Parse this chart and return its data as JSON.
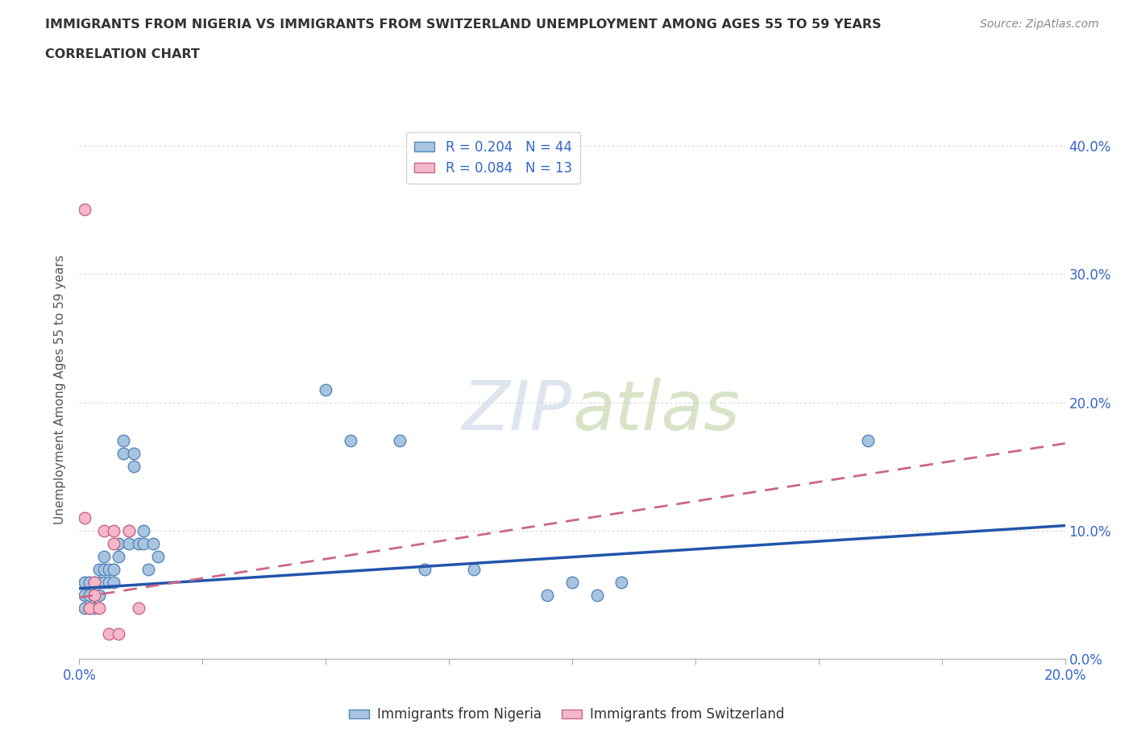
{
  "title_line1": "IMMIGRANTS FROM NIGERIA VS IMMIGRANTS FROM SWITZERLAND UNEMPLOYMENT AMONG AGES 55 TO 59 YEARS",
  "title_line2": "CORRELATION CHART",
  "source": "Source: ZipAtlas.com",
  "ylabel": "Unemployment Among Ages 55 to 59 years",
  "xlim": [
    0.0,
    0.2
  ],
  "ylim": [
    0.0,
    0.42
  ],
  "xticks": [
    0.0,
    0.025,
    0.05,
    0.075,
    0.1,
    0.125,
    0.15,
    0.175,
    0.2
  ],
  "yticks": [
    0.0,
    0.1,
    0.2,
    0.3,
    0.4
  ],
  "nigeria_color": "#a8c4e0",
  "nigeria_edge_color": "#5588bb",
  "switzerland_color": "#f4b8c8",
  "switzerland_edge_color": "#cc6688",
  "nigeria_line_color": "#2255aa",
  "switzerland_line_color": "#cc6688",
  "R_nigeria": 0.204,
  "N_nigeria": 44,
  "R_switzerland": 0.084,
  "N_switzerland": 13,
  "watermark": "ZIPatlas",
  "nigeria_x": [
    0.001,
    0.001,
    0.001,
    0.002,
    0.002,
    0.002,
    0.003,
    0.003,
    0.003,
    0.003,
    0.004,
    0.004,
    0.004,
    0.005,
    0.005,
    0.005,
    0.006,
    0.006,
    0.007,
    0.007,
    0.008,
    0.008,
    0.009,
    0.009,
    0.01,
    0.01,
    0.011,
    0.011,
    0.012,
    0.013,
    0.013,
    0.014,
    0.015,
    0.016,
    0.05,
    0.055,
    0.065,
    0.07,
    0.08,
    0.095,
    0.1,
    0.105,
    0.11,
    0.16
  ],
  "nigeria_y": [
    0.04,
    0.05,
    0.06,
    0.04,
    0.05,
    0.06,
    0.04,
    0.05,
    0.06,
    0.05,
    0.06,
    0.07,
    0.05,
    0.07,
    0.08,
    0.06,
    0.06,
    0.07,
    0.06,
    0.07,
    0.08,
    0.09,
    0.17,
    0.16,
    0.09,
    0.1,
    0.15,
    0.16,
    0.09,
    0.1,
    0.09,
    0.07,
    0.09,
    0.08,
    0.21,
    0.17,
    0.17,
    0.07,
    0.07,
    0.05,
    0.06,
    0.05,
    0.06,
    0.17
  ],
  "switzerland_x": [
    0.001,
    0.001,
    0.002,
    0.003,
    0.003,
    0.004,
    0.005,
    0.006,
    0.007,
    0.007,
    0.008,
    0.01,
    0.012
  ],
  "switzerland_y": [
    0.35,
    0.11,
    0.04,
    0.05,
    0.06,
    0.04,
    0.1,
    0.02,
    0.09,
    0.1,
    0.02,
    0.1,
    0.04
  ],
  "nigeria_trend_x0": 0.0,
  "nigeria_trend_y0": 0.055,
  "nigeria_trend_x1": 0.2,
  "nigeria_trend_y1": 0.104,
  "switzerland_trend_x0": 0.0,
  "switzerland_trend_y0": 0.048,
  "switzerland_trend_x1": 0.2,
  "switzerland_trend_y1": 0.168
}
